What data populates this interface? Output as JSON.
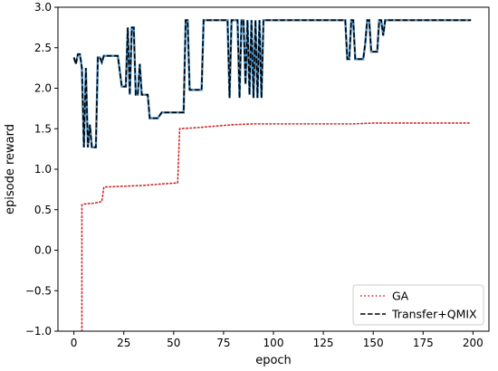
{
  "chart_data": {
    "type": "line",
    "title": "",
    "xlabel": "epoch",
    "ylabel": "episode reward",
    "xlim": [
      -8,
      208
    ],
    "ylim": [
      -1.0,
      3.0
    ],
    "xticks": [
      "0",
      "25",
      "50",
      "75",
      "100",
      "125",
      "150",
      "175",
      "200"
    ],
    "yticks": [
      "−1.0",
      "−0.5",
      "0.0",
      "0.5",
      "1.0",
      "1.5",
      "2.0",
      "2.5",
      "3.0"
    ],
    "grid": false,
    "legend_position": "lower-right",
    "series": [
      {
        "name": "GA",
        "color": "#cc2a2a",
        "style": "dotted",
        "x": [
          0,
          4,
          4,
          5,
          10,
          14,
          15,
          25,
          35,
          45,
          52,
          53,
          60,
          70,
          80,
          90,
          100,
          120,
          140,
          150,
          160,
          180,
          199
        ],
        "y": [
          -1.7,
          -1.0,
          0.56,
          0.57,
          0.58,
          0.6,
          0.78,
          0.79,
          0.8,
          0.82,
          0.83,
          1.5,
          1.51,
          1.53,
          1.55,
          1.56,
          1.56,
          1.56,
          1.56,
          1.57,
          1.57,
          1.57,
          1.57
        ]
      },
      {
        "name": "Transfer+QMIX",
        "color": "#000000",
        "style": "dashed",
        "x": [
          0,
          1,
          2,
          3,
          4,
          5,
          6,
          7,
          8,
          9,
          10,
          11,
          12,
          13,
          14,
          15,
          16,
          18,
          20,
          22,
          24,
          25,
          26,
          27,
          28,
          29,
          30,
          31,
          32,
          33,
          34,
          36,
          37,
          38,
          40,
          42,
          44,
          46,
          48,
          50,
          52,
          54,
          55,
          56,
          57,
          58,
          60,
          62,
          64,
          65,
          66,
          68,
          70,
          72,
          74,
          76,
          77,
          78,
          79,
          80,
          82,
          83,
          84,
          85,
          86,
          87,
          88,
          89,
          90,
          91,
          92,
          93,
          94,
          95,
          96,
          98,
          100,
          110,
          120,
          130,
          135,
          136,
          137,
          138,
          139,
          140,
          141,
          142,
          144,
          145,
          146,
          147,
          148,
          149,
          150,
          151,
          152,
          153,
          154,
          155,
          156,
          157,
          160,
          170,
          180,
          190,
          199
        ],
        "y": [
          2.38,
          2.3,
          2.42,
          2.42,
          2.25,
          1.27,
          2.25,
          1.27,
          1.55,
          1.27,
          1.27,
          1.27,
          2.38,
          2.38,
          2.32,
          2.4,
          2.4,
          2.4,
          2.4,
          2.4,
          2.02,
          2.02,
          2.02,
          2.75,
          1.92,
          2.75,
          2.75,
          1.92,
          1.92,
          2.3,
          1.92,
          1.92,
          1.92,
          1.63,
          1.63,
          1.63,
          1.7,
          1.7,
          1.7,
          1.7,
          1.7,
          1.7,
          1.7,
          2.84,
          2.84,
          1.98,
          1.98,
          1.98,
          1.98,
          2.84,
          2.84,
          2.84,
          2.84,
          2.84,
          2.84,
          2.84,
          2.84,
          1.88,
          2.84,
          2.84,
          2.84,
          1.88,
          2.84,
          2.84,
          2.05,
          2.84,
          1.92,
          2.84,
          1.88,
          2.84,
          1.88,
          2.84,
          1.88,
          2.84,
          2.84,
          2.84,
          2.84,
          2.84,
          2.84,
          2.84,
          2.84,
          2.84,
          2.36,
          2.36,
          2.84,
          2.84,
          2.36,
          2.36,
          2.36,
          2.36,
          2.55,
          2.84,
          2.84,
          2.45,
          2.45,
          2.45,
          2.45,
          2.84,
          2.84,
          2.65,
          2.84,
          2.84,
          2.84,
          2.84,
          2.84,
          2.84,
          2.84
        ]
      }
    ]
  }
}
